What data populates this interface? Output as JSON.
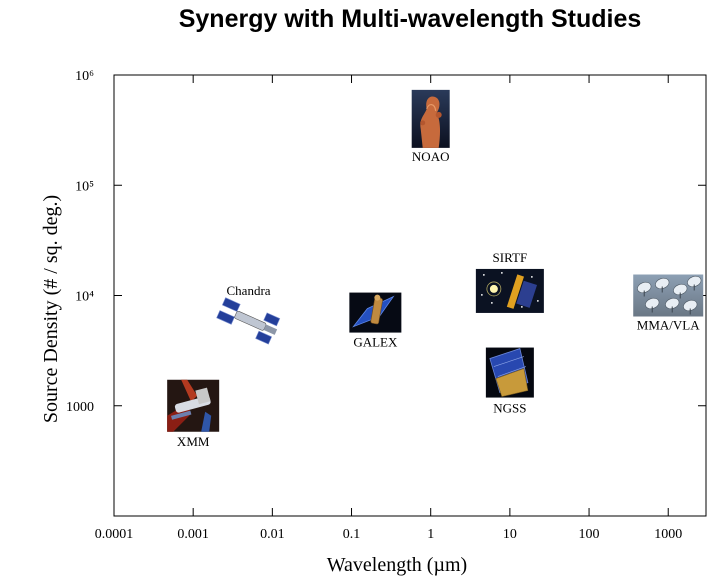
{
  "chart_data": {
    "type": "scatter",
    "title": "Synergy with Multi-wavelength Studies",
    "xlabel": "Wavelength (µm)",
    "ylabel": "Source Density (# / sq. deg.)",
    "x_scale": "log",
    "y_scale": "log",
    "xlim": [
      0.0001,
      3000
    ],
    "ylim": [
      100,
      1000000
    ],
    "grid": false,
    "x_ticks": [
      {
        "value": 0.0001,
        "label": "0.0001"
      },
      {
        "value": 0.001,
        "label": "0.001"
      },
      {
        "value": 0.01,
        "label": "0.01"
      },
      {
        "value": 0.1,
        "label": "0.1"
      },
      {
        "value": 1,
        "label": "1"
      },
      {
        "value": 10,
        "label": "10"
      },
      {
        "value": 100,
        "label": "100"
      },
      {
        "value": 1000,
        "label": "1000"
      }
    ],
    "y_ticks": [
      {
        "value": 1000,
        "label": "1000"
      },
      {
        "value": 10000,
        "label": "10⁴"
      },
      {
        "value": 100000,
        "label": "10⁵"
      },
      {
        "value": 1000000,
        "label": "10⁶"
      }
    ],
    "points": [
      {
        "label": "XMM",
        "x": 0.001,
        "y": 1000,
        "icon": "xmm-satellite-icon"
      },
      {
        "label": "Chandra",
        "x": 0.005,
        "y": 6000,
        "icon": "chandra-satellite-icon"
      },
      {
        "label": "GALEX",
        "x": 0.2,
        "y": 7000,
        "icon": "galex-satellite-icon"
      },
      {
        "label": "NOAO",
        "x": 1,
        "y": 400000,
        "icon": "noao-pillar-icon"
      },
      {
        "label": "SIRTF",
        "x": 10,
        "y": 11000,
        "icon": "sirtf-telescope-icon"
      },
      {
        "label": "NGSS",
        "x": 10,
        "y": 2000,
        "icon": "ngss-telescope-icon"
      },
      {
        "label": "MMA/VLA",
        "x": 1000,
        "y": 10000,
        "icon": "mma-vla-dishes-icon"
      }
    ]
  }
}
